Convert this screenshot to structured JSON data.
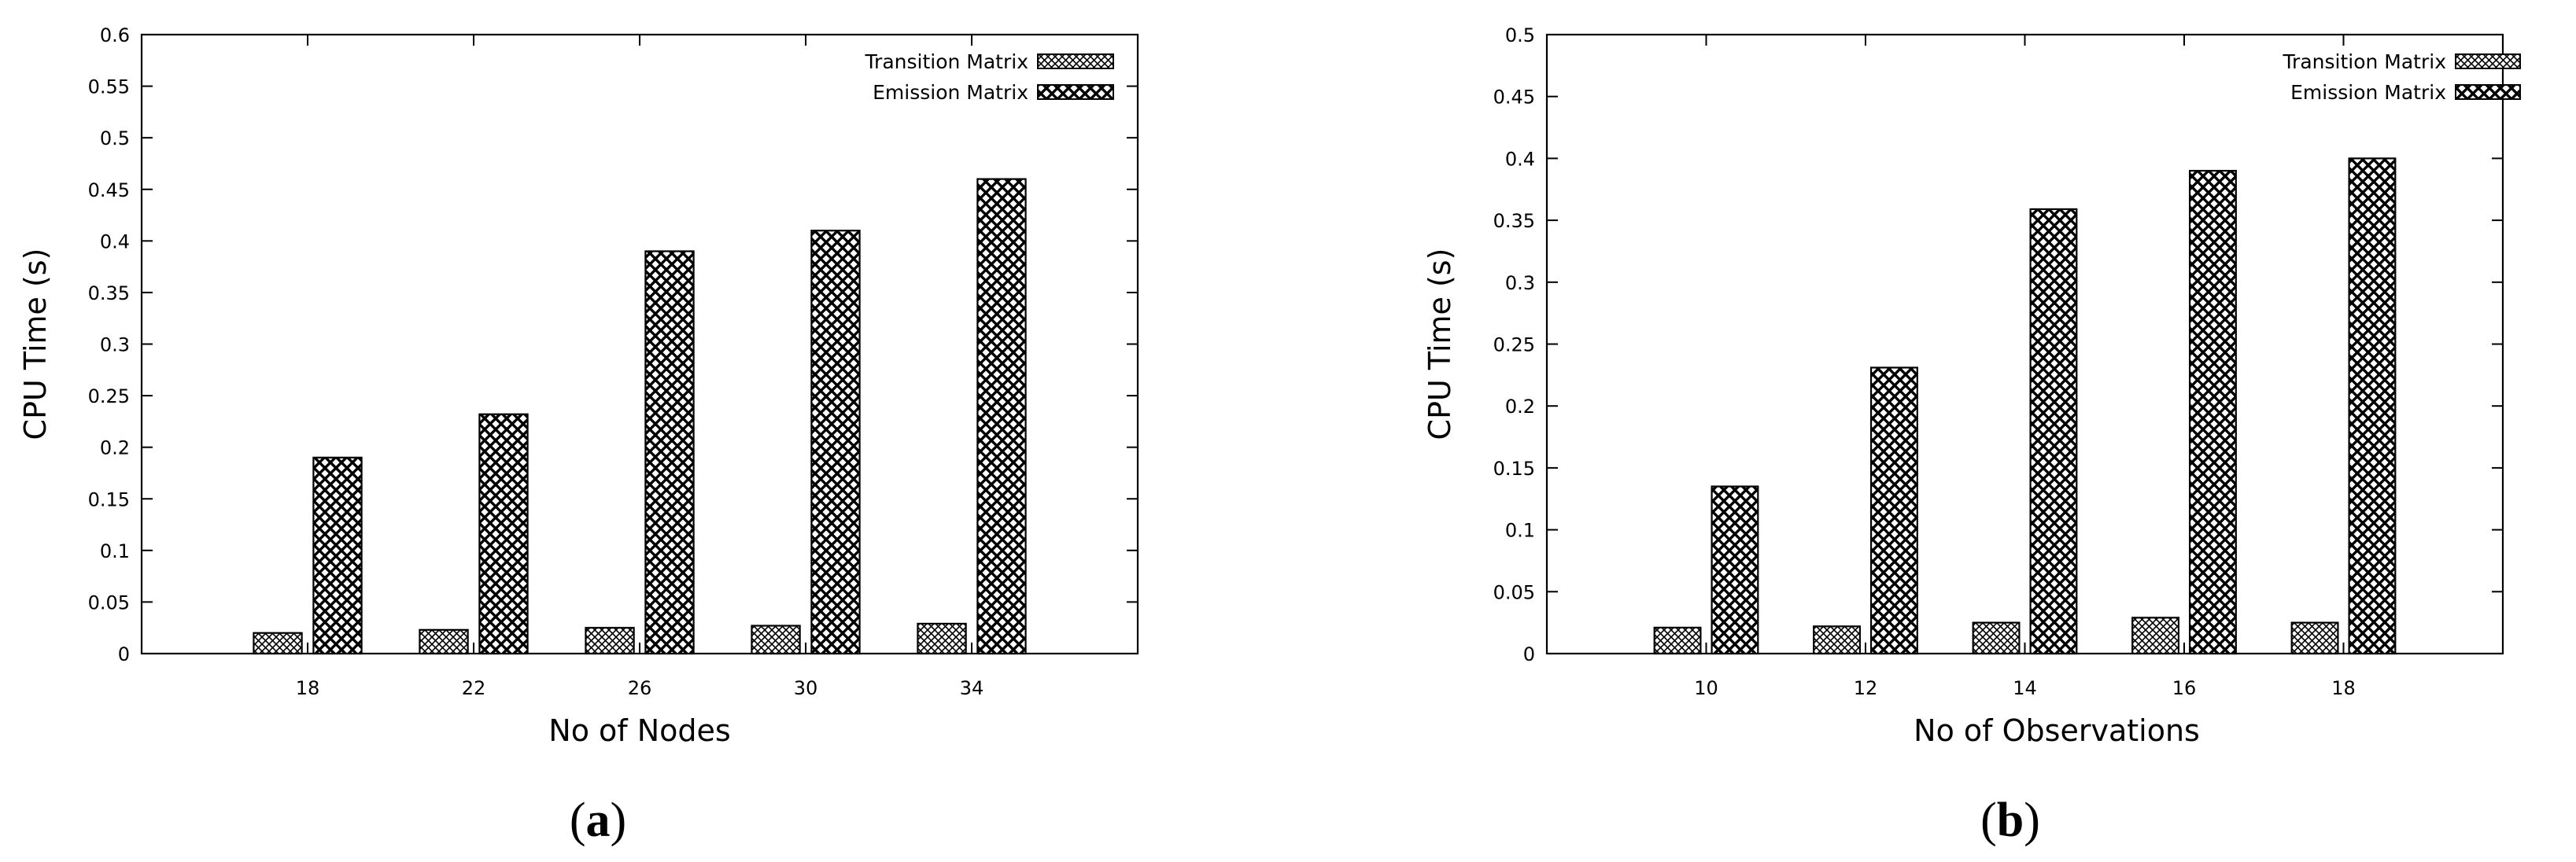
{
  "chart_data": [
    {
      "type": "bar",
      "panel_label": "a",
      "xlabel": "No of Nodes",
      "ylabel": "CPU Time (s)",
      "categories": [
        "18",
        "22",
        "26",
        "30",
        "34"
      ],
      "ylim": [
        0,
        0.6
      ],
      "yticks": [
        0,
        0.05,
        0.1,
        0.15,
        0.2,
        0.25,
        0.3,
        0.35,
        0.4,
        0.45,
        0.5,
        0.55,
        0.6
      ],
      "ytick_labels": [
        "0",
        "0.05",
        "0.1",
        "0.15",
        "0.2",
        "0.25",
        "0.3",
        "0.35",
        "0.4",
        "0.45",
        "0.5",
        "0.55",
        "0.6"
      ],
      "legend_position": "top-right",
      "grid": false,
      "series": [
        {
          "name": "Transition Matrix",
          "values": [
            0.02,
            0.023,
            0.025,
            0.027,
            0.029
          ],
          "pattern": "fine-crosshatch"
        },
        {
          "name": "Emission Matrix",
          "values": [
            0.19,
            0.232,
            0.39,
            0.41,
            0.46
          ],
          "pattern": "coarse-crosshatch"
        }
      ]
    },
    {
      "type": "bar",
      "panel_label": "b",
      "xlabel": "No of Observations",
      "ylabel": "CPU Time (s)",
      "categories": [
        "10",
        "12",
        "14",
        "16",
        "18"
      ],
      "ylim": [
        0,
        0.5
      ],
      "yticks": [
        0,
        0.05,
        0.1,
        0.15,
        0.2,
        0.25,
        0.3,
        0.35,
        0.4,
        0.45,
        0.5
      ],
      "ytick_labels": [
        "0",
        "0.05",
        "0.1",
        "0.15",
        "0.2",
        "0.25",
        "0.3",
        "0.35",
        "0.4",
        "0.45",
        "0.5"
      ],
      "legend_position": "top-right",
      "grid": false,
      "series": [
        {
          "name": "Transition Matrix",
          "values": [
            0.021,
            0.022,
            0.025,
            0.029,
            0.025
          ],
          "pattern": "fine-crosshatch"
        },
        {
          "name": "Emission Matrix",
          "values": [
            0.135,
            0.231,
            0.359,
            0.39,
            0.4
          ],
          "pattern": "coarse-crosshatch"
        }
      ]
    }
  ]
}
